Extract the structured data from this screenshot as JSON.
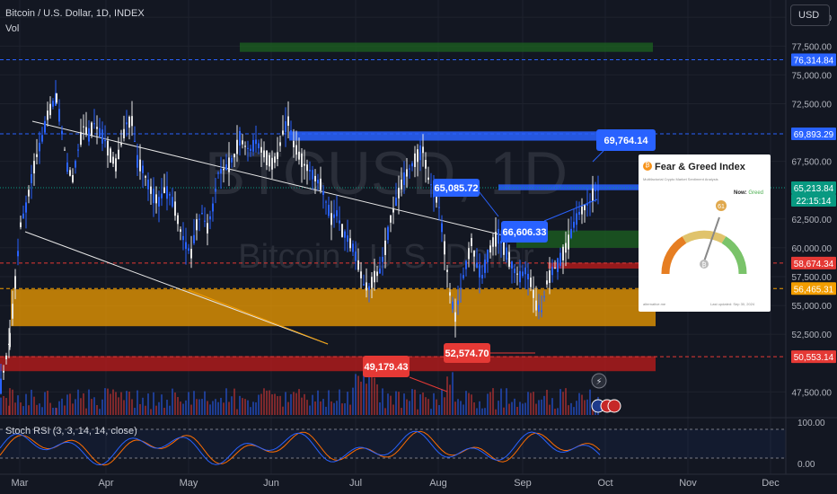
{
  "header": {
    "title": "Bitcoin / U.S. Dollar, 1D, INDEX",
    "sub": "Vol"
  },
  "currency_button": "USD",
  "watermark": {
    "ticker": "BTCUSD, 1D",
    "name": "Bitcoin / U.S. Dollar"
  },
  "stoch_label": "Stoch RSI (3, 3, 14, 14, close)",
  "fear_greed": {
    "title": "Fear & Greed Index",
    "subtitle": "Multifactorial Crypto Market Sentiment Analysis",
    "now_label": "Now:",
    "now_value": "Greed",
    "value": "61",
    "footer_left": "alternative.me",
    "footer_right": "Last updated: Sep 30, 2024"
  },
  "colors": {
    "background": "#131722",
    "up": "#2962ff",
    "down": "#e6e6e6",
    "blue_zone": "#2962ff",
    "green_zone": "#1b5e20",
    "orange_zone": "#f29d00",
    "red_zone": "#b71c1c",
    "stoch_k": "#2962ff",
    "stoch_d": "#ff6d00"
  },
  "chart_data": {
    "type": "candlestick",
    "title": "Bitcoin / U.S. Dollar, 1D, INDEX",
    "y_axis": {
      "ticks": [
        "80,000.00",
        "77,500.00",
        "75,000.00",
        "72,500.00",
        "67,500.00",
        "62,500.00",
        "60,000.00",
        "57,500.00",
        "55,000.00",
        "52,500.00",
        "47,500.00"
      ],
      "tick_values": [
        80000,
        77500,
        75000,
        72500,
        67500,
        62500,
        60000,
        57500,
        55000,
        52500,
        47500
      ],
      "range": [
        45500,
        81500
      ]
    },
    "x_axis": {
      "ticks": [
        "Mar",
        "Apr",
        "May",
        "Jun",
        "Jul",
        "Aug",
        "Sep",
        "Oct",
        "Nov",
        "Dec"
      ]
    },
    "price_labels": [
      {
        "text": "76,314.84",
        "value": 76314.84,
        "color": "#2962ff"
      },
      {
        "text": "69,893.29",
        "value": 69893.29,
        "color": "#2962ff"
      },
      {
        "text": "65,213.84",
        "value": 65213.84,
        "color": "#089981"
      },
      {
        "text": "22:15:14",
        "value": 64500,
        "color": "#089981"
      },
      {
        "text": "58,674.34",
        "value": 58674.34,
        "color": "#e53935"
      },
      {
        "text": "56,465.31",
        "value": 56465.31,
        "color": "#f29d00"
      },
      {
        "text": "50,553.14",
        "value": 50553.14,
        "color": "#e53935"
      }
    ],
    "annotations": [
      {
        "text": "69,764.14",
        "value": 69764.14,
        "color": "#2962ff"
      },
      {
        "text": "65,085.72",
        "value": 65085.72,
        "color": "#2962ff"
      },
      {
        "text": "66,606.33",
        "value": 66606.33,
        "color": "#2962ff"
      },
      {
        "text": "49,179.43",
        "value": 49179.43,
        "color": "#e53935"
      },
      {
        "text": "52,574.70",
        "value": 52574.7,
        "color": "#e53935"
      }
    ],
    "zones": [
      {
        "name": "green-top",
        "low": 77000,
        "high": 77800,
        "color": "#1b5e20"
      },
      {
        "name": "blue-high",
        "low": 69300,
        "high": 70100,
        "color": "#2962ff"
      },
      {
        "name": "blue-mid",
        "low": 65000,
        "high": 65500,
        "color": "#2962ff"
      },
      {
        "name": "green-mid",
        "low": 60000,
        "high": 61500,
        "color": "#1b5e20"
      },
      {
        "name": "red-mid",
        "low": 58200,
        "high": 58700,
        "color": "#b71c1c"
      },
      {
        "name": "orange",
        "low": 53200,
        "high": 56400,
        "color": "#f29d00"
      },
      {
        "name": "red-low",
        "low": 49300,
        "high": 50600,
        "color": "#b71c1c"
      }
    ],
    "stoch_rsi": {
      "ticks": [
        "100.00",
        "0.00"
      ],
      "range": [
        0,
        100
      ]
    },
    "grid": true
  }
}
